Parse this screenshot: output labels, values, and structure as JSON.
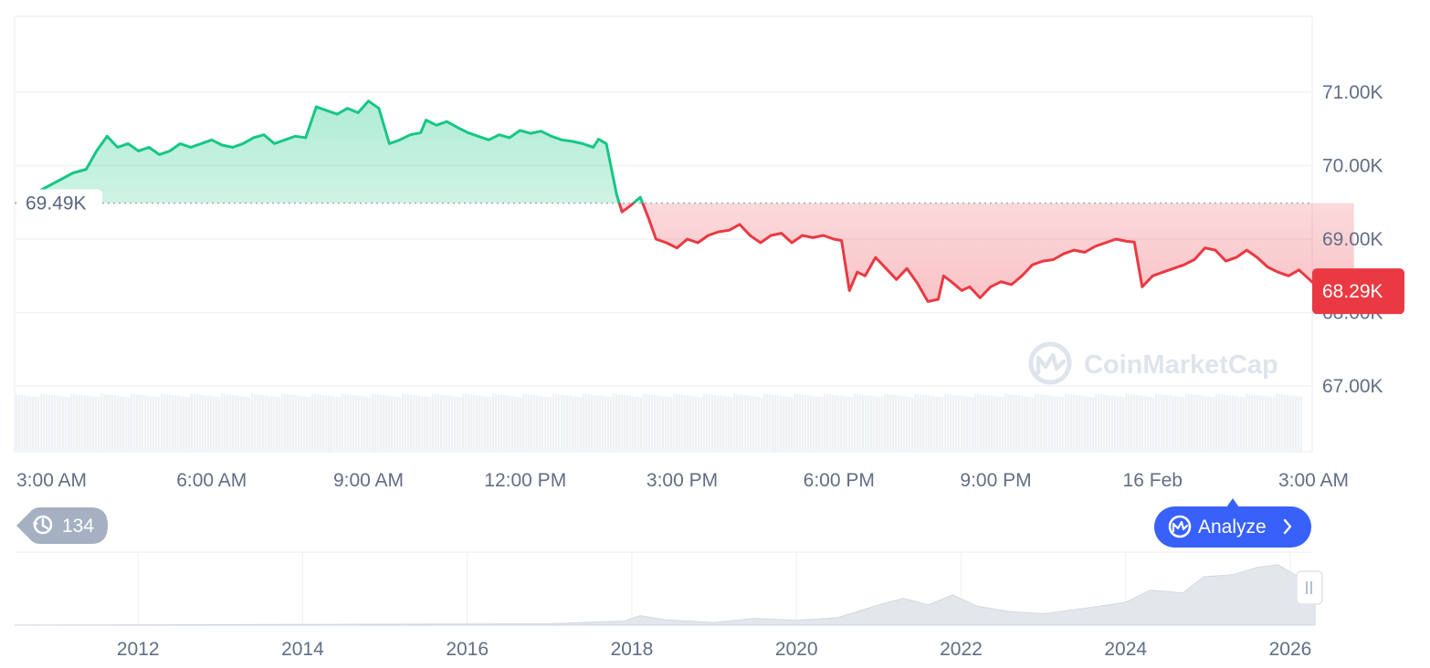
{
  "chart_data": {
    "type": "line",
    "price_unit": "USD",
    "reference_price": 69.49,
    "reference_price_label": "69.49K",
    "current_price": 68.29,
    "current_price_label": "68.29K",
    "y_axis": {
      "min": 67.0,
      "max": 71.0,
      "ticks": [
        71.0,
        70.0,
        69.0,
        68.0,
        67.0
      ],
      "tick_labels": [
        "71.00K",
        "70.00K",
        "69.00K",
        "68.00K",
        "67.00K"
      ]
    },
    "x_axis": {
      "tick_labels": [
        "3:00 AM",
        "6:00 AM",
        "9:00 AM",
        "12:00 PM",
        "3:00 PM",
        "6:00 PM",
        "9:00 PM",
        "16 Feb",
        "3:00 AM"
      ],
      "tick_hours": [
        3,
        6,
        9,
        12,
        15,
        18,
        21,
        24,
        27
      ],
      "range_hours": [
        3,
        27
      ]
    },
    "series": [
      {
        "values": [
          [
            3.0,
            69.49
          ],
          [
            3.35,
            69.9
          ],
          [
            3.6,
            69.95
          ],
          [
            3.8,
            70.2
          ],
          [
            4.0,
            70.4
          ],
          [
            4.2,
            70.25
          ],
          [
            4.4,
            70.3
          ],
          [
            4.6,
            70.2
          ],
          [
            4.8,
            70.25
          ],
          [
            5.0,
            70.15
          ],
          [
            5.2,
            70.2
          ],
          [
            5.4,
            70.3
          ],
          [
            5.6,
            70.25
          ],
          [
            5.8,
            70.3
          ],
          [
            6.0,
            70.35
          ],
          [
            6.2,
            70.28
          ],
          [
            6.4,
            70.25
          ],
          [
            6.6,
            70.3
          ],
          [
            6.8,
            70.38
          ],
          [
            7.0,
            70.42
          ],
          [
            7.2,
            70.3
          ],
          [
            7.4,
            70.35
          ],
          [
            7.6,
            70.4
          ],
          [
            7.8,
            70.38
          ],
          [
            8.0,
            70.8
          ],
          [
            8.2,
            70.75
          ],
          [
            8.4,
            70.7
          ],
          [
            8.6,
            70.78
          ],
          [
            8.8,
            70.72
          ],
          [
            9.0,
            70.88
          ],
          [
            9.2,
            70.78
          ],
          [
            9.4,
            70.3
          ],
          [
            9.6,
            70.35
          ],
          [
            9.8,
            70.42
          ],
          [
            10.0,
            70.45
          ],
          [
            10.1,
            70.62
          ],
          [
            10.3,
            70.55
          ],
          [
            10.5,
            70.6
          ],
          [
            10.7,
            70.52
          ],
          [
            10.9,
            70.45
          ],
          [
            11.1,
            70.4
          ],
          [
            11.3,
            70.35
          ],
          [
            11.5,
            70.42
          ],
          [
            11.7,
            70.38
          ],
          [
            11.9,
            70.48
          ],
          [
            12.1,
            70.44
          ],
          [
            12.3,
            70.47
          ],
          [
            12.5,
            70.4
          ],
          [
            12.7,
            70.35
          ],
          [
            12.9,
            70.33
          ],
          [
            13.1,
            70.3
          ],
          [
            13.3,
            70.25
          ],
          [
            13.4,
            70.36
          ],
          [
            13.55,
            70.3
          ],
          [
            13.75,
            69.6
          ],
          [
            13.85,
            69.37
          ],
          [
            14.0,
            69.45
          ],
          [
            14.2,
            69.57
          ],
          [
            14.35,
            69.3
          ],
          [
            14.5,
            69.0
          ],
          [
            14.7,
            68.95
          ],
          [
            14.9,
            68.88
          ],
          [
            15.1,
            69.0
          ],
          [
            15.3,
            68.95
          ],
          [
            15.5,
            69.05
          ],
          [
            15.7,
            69.1
          ],
          [
            15.9,
            69.12
          ],
          [
            16.1,
            69.2
          ],
          [
            16.3,
            69.05
          ],
          [
            16.5,
            68.95
          ],
          [
            16.7,
            69.05
          ],
          [
            16.9,
            69.08
          ],
          [
            17.1,
            68.95
          ],
          [
            17.3,
            69.05
          ],
          [
            17.5,
            69.02
          ],
          [
            17.7,
            69.05
          ],
          [
            17.9,
            69.0
          ],
          [
            18.05,
            68.98
          ],
          [
            18.2,
            68.3
          ],
          [
            18.35,
            68.55
          ],
          [
            18.5,
            68.5
          ],
          [
            18.7,
            68.75
          ],
          [
            18.9,
            68.6
          ],
          [
            19.1,
            68.45
          ],
          [
            19.3,
            68.6
          ],
          [
            19.5,
            68.4
          ],
          [
            19.7,
            68.15
          ],
          [
            19.9,
            68.18
          ],
          [
            20.0,
            68.5
          ],
          [
            20.15,
            68.42
          ],
          [
            20.35,
            68.3
          ],
          [
            20.5,
            68.35
          ],
          [
            20.7,
            68.2
          ],
          [
            20.9,
            68.35
          ],
          [
            21.1,
            68.42
          ],
          [
            21.3,
            68.38
          ],
          [
            21.5,
            68.5
          ],
          [
            21.7,
            68.65
          ],
          [
            21.9,
            68.7
          ],
          [
            22.1,
            68.72
          ],
          [
            22.3,
            68.8
          ],
          [
            22.5,
            68.85
          ],
          [
            22.7,
            68.82
          ],
          [
            22.9,
            68.9
          ],
          [
            23.1,
            68.95
          ],
          [
            23.3,
            69.0
          ],
          [
            23.5,
            68.97
          ],
          [
            23.65,
            68.96
          ],
          [
            23.8,
            68.35
          ],
          [
            24.0,
            68.5
          ],
          [
            24.2,
            68.55
          ],
          [
            24.4,
            68.6
          ],
          [
            24.6,
            68.65
          ],
          [
            24.8,
            68.72
          ],
          [
            25.0,
            68.88
          ],
          [
            25.2,
            68.85
          ],
          [
            25.4,
            68.7
          ],
          [
            25.6,
            68.75
          ],
          [
            25.8,
            68.85
          ],
          [
            26.0,
            68.75
          ],
          [
            26.2,
            68.62
          ],
          [
            26.4,
            68.55
          ],
          [
            26.6,
            68.5
          ],
          [
            26.8,
            68.58
          ],
          [
            27.0,
            68.45
          ],
          [
            27.15,
            68.35
          ],
          [
            27.3,
            68.42
          ],
          [
            27.5,
            68.35
          ],
          [
            27.7,
            68.32
          ],
          [
            27.85,
            68.29
          ]
        ]
      }
    ],
    "volume": {
      "relative_bar_height": 0.92
    },
    "navigator": {
      "tick_labels": [
        "2012",
        "2014",
        "2016",
        "2018",
        "2020",
        "2022",
        "2024",
        "2026"
      ],
      "tick_years": [
        2012,
        2014,
        2016,
        2018,
        2020,
        2022,
        2024,
        2026
      ],
      "range_years": [
        2010.5,
        2026.3
      ],
      "history_relative": [
        [
          2010.5,
          0.0
        ],
        [
          2017.0,
          0.02
        ],
        [
          2017.9,
          0.06
        ],
        [
          2018.1,
          0.14
        ],
        [
          2018.4,
          0.08
        ],
        [
          2019.0,
          0.04
        ],
        [
          2019.5,
          0.1
        ],
        [
          2020.0,
          0.07
        ],
        [
          2020.5,
          0.11
        ],
        [
          2021.0,
          0.3
        ],
        [
          2021.3,
          0.4
        ],
        [
          2021.6,
          0.3
        ],
        [
          2021.9,
          0.45
        ],
        [
          2022.2,
          0.28
        ],
        [
          2022.6,
          0.2
        ],
        [
          2023.0,
          0.17
        ],
        [
          2023.5,
          0.25
        ],
        [
          2024.0,
          0.34
        ],
        [
          2024.3,
          0.52
        ],
        [
          2024.7,
          0.48
        ],
        [
          2024.95,
          0.72
        ],
        [
          2025.3,
          0.75
        ],
        [
          2025.6,
          0.86
        ],
        [
          2025.85,
          0.9
        ],
        [
          2026.1,
          0.72
        ],
        [
          2026.3,
          0.7
        ]
      ]
    },
    "colors": {
      "up": "#16c784",
      "down": "#ea3943",
      "grid": "#eff2f5",
      "label": "#616e85",
      "analyze_button": "#3861fb",
      "history_badge": "#a6b0c3",
      "volume": "#eff2f5"
    },
    "watermark": "CoinMarketCap",
    "legend": "none"
  },
  "ui": {
    "analyze_label": "Analyze",
    "history_count": "134"
  }
}
